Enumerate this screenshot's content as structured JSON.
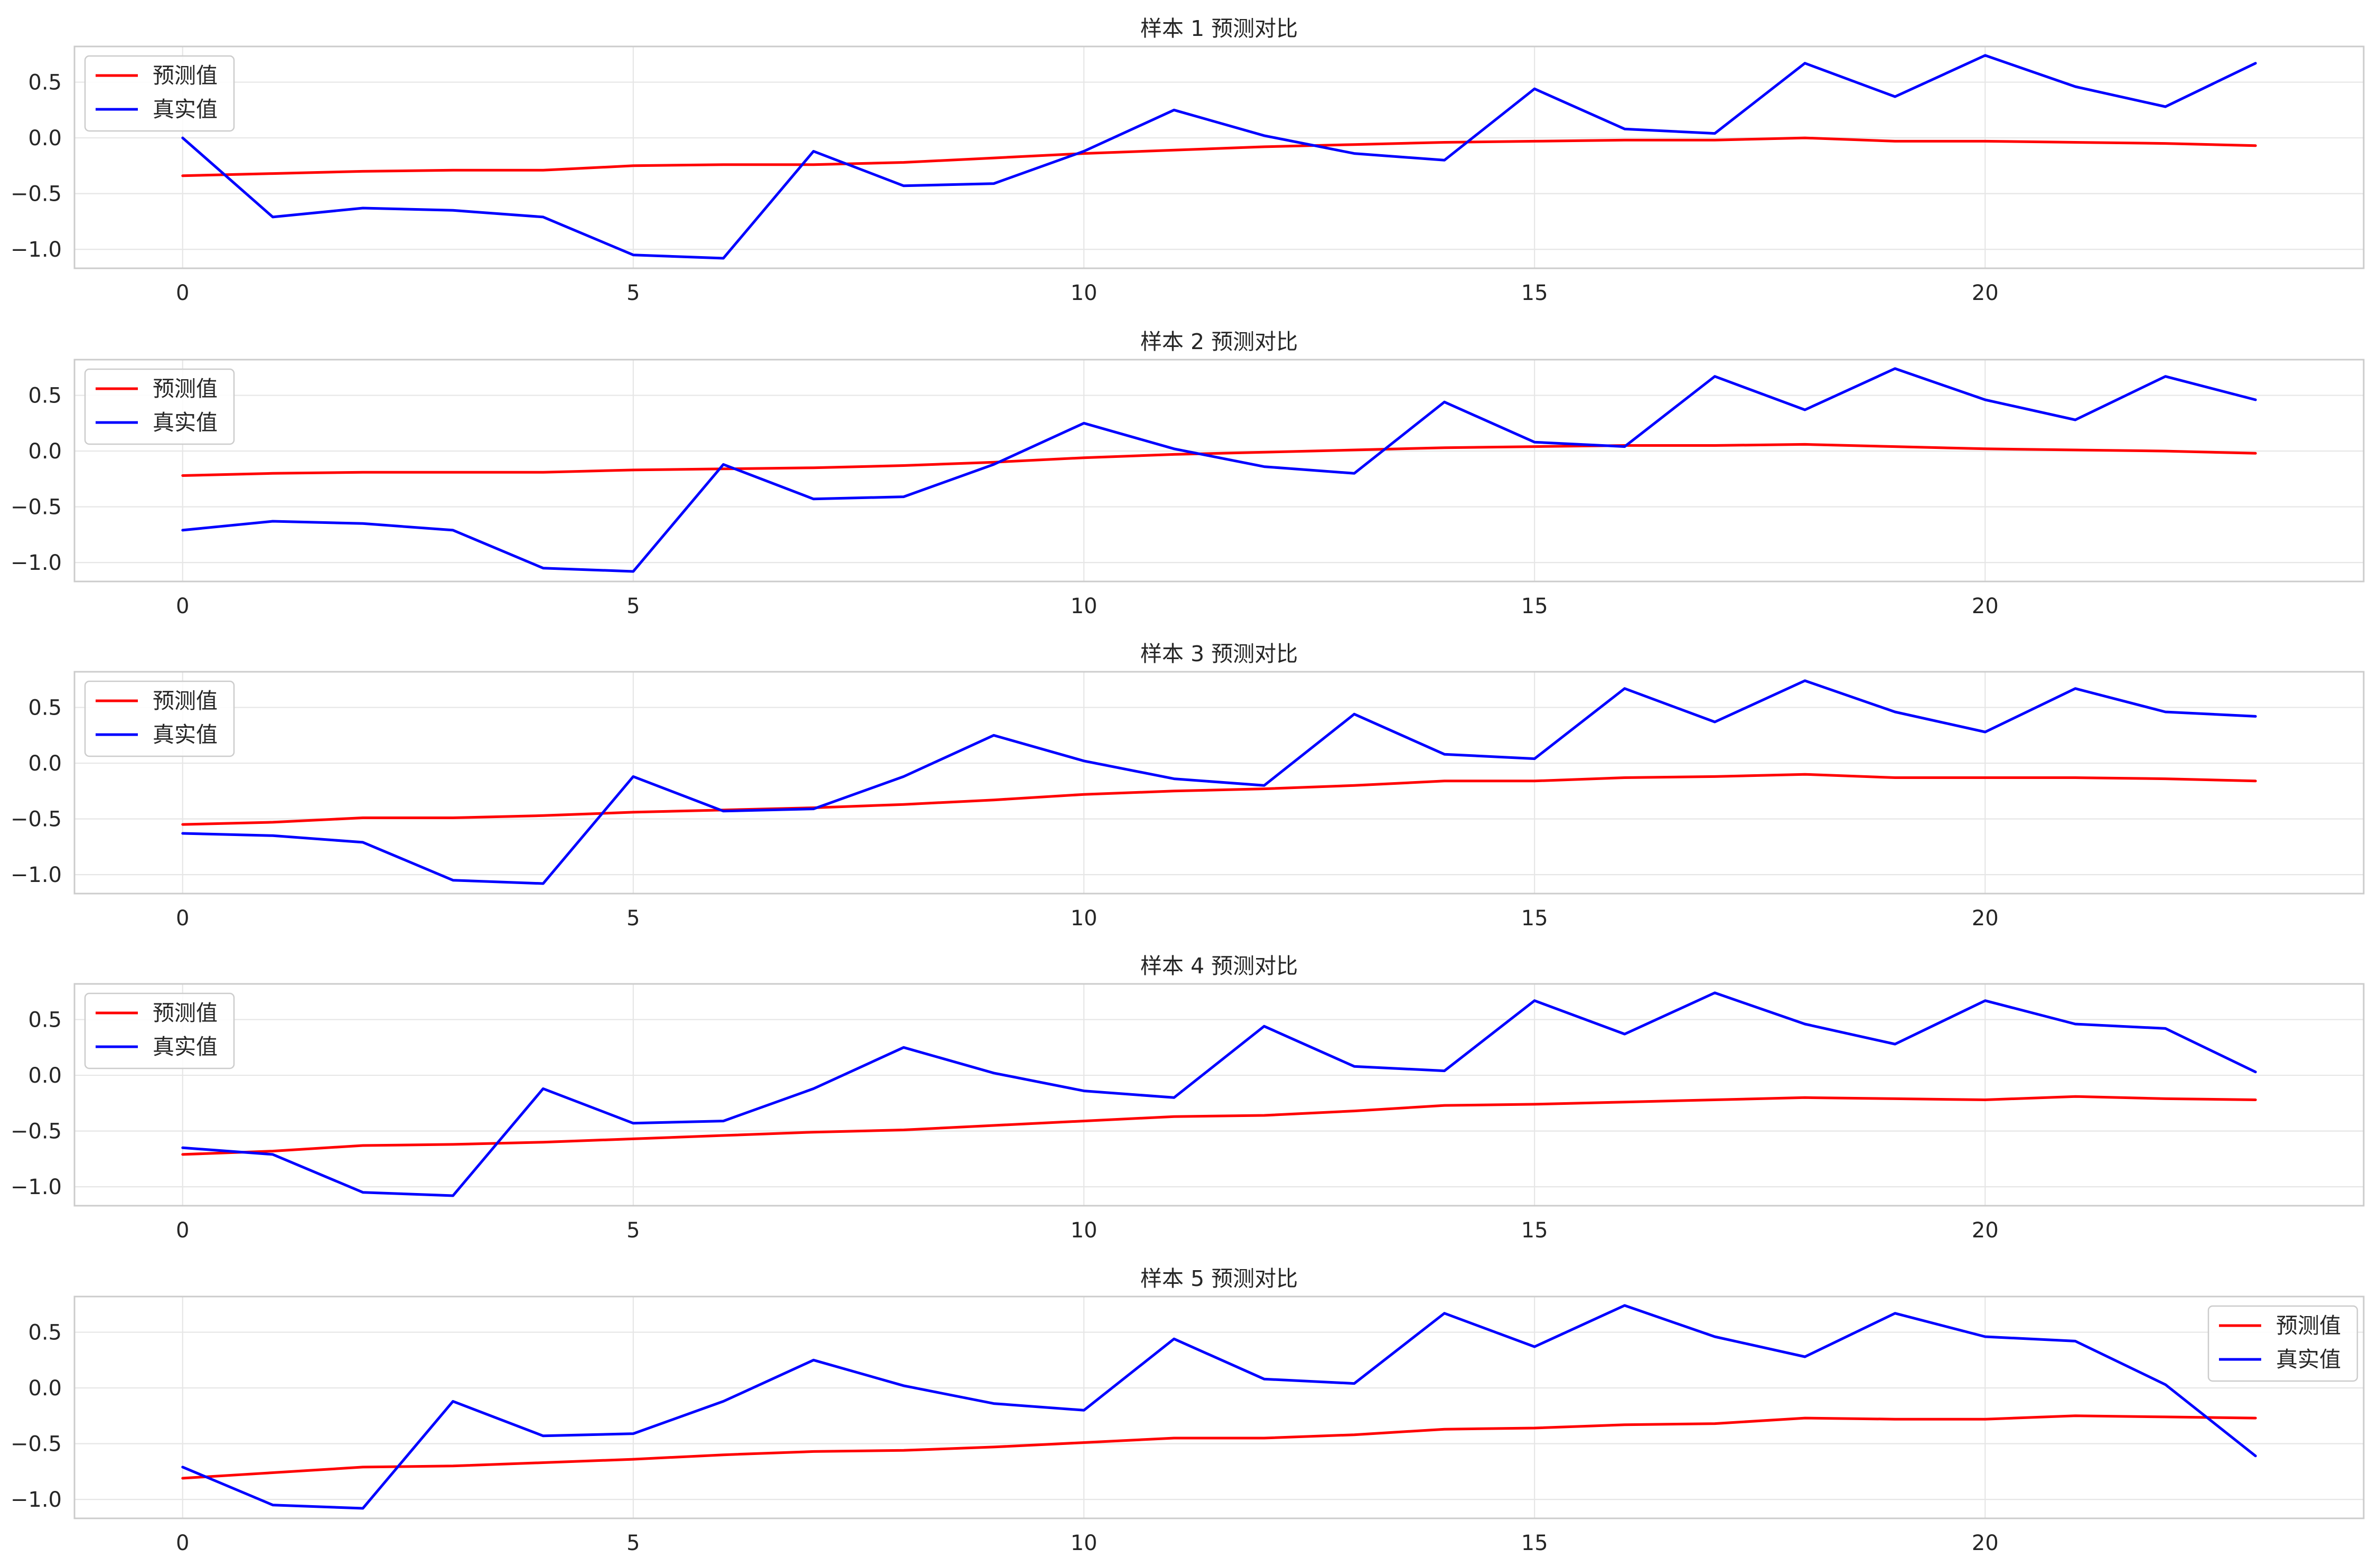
{
  "chart_data": [
    {
      "type": "line",
      "title": "样本 1 预测对比",
      "x": [
        0,
        1,
        2,
        3,
        4,
        5,
        6,
        7,
        8,
        9,
        10,
        11,
        12,
        13,
        14,
        15,
        16,
        17,
        18,
        19,
        20,
        21,
        22,
        23
      ],
      "xticks": [
        0,
        5,
        10,
        15,
        20
      ],
      "yticks": [
        0.5,
        0.0,
        -0.5,
        -1.0
      ],
      "ytick_labels": [
        "0.5",
        "0.0",
        "−0.5",
        "−1.0"
      ],
      "xlim": [
        -1.2,
        24.2
      ],
      "ylim": [
        -1.17,
        0.82
      ],
      "grid": true,
      "legend_placement": "upper-left",
      "series": [
        {
          "name": "预测值",
          "color": "#ff0000",
          "values": [
            -0.34,
            -0.32,
            -0.3,
            -0.29,
            -0.29,
            -0.25,
            -0.24,
            -0.24,
            -0.22,
            -0.18,
            -0.14,
            -0.11,
            -0.08,
            -0.06,
            -0.04,
            -0.03,
            -0.02,
            -0.02,
            0.0,
            -0.03,
            -0.03,
            -0.04,
            -0.05,
            -0.07
          ]
        },
        {
          "name": "真实值",
          "color": "#0000ff",
          "values": [
            0.0,
            -0.71,
            -0.63,
            -0.65,
            -0.71,
            -1.05,
            -1.08,
            -0.12,
            -0.43,
            -0.41,
            -0.12,
            0.25,
            0.02,
            -0.14,
            -0.2,
            0.44,
            0.08,
            0.04,
            0.67,
            0.37,
            0.74,
            0.46,
            0.28,
            0.67
          ]
        }
      ]
    },
    {
      "type": "line",
      "title": "样本 2 预测对比",
      "x": [
        0,
        1,
        2,
        3,
        4,
        5,
        6,
        7,
        8,
        9,
        10,
        11,
        12,
        13,
        14,
        15,
        16,
        17,
        18,
        19,
        20,
        21,
        22,
        23
      ],
      "xticks": [
        0,
        5,
        10,
        15,
        20
      ],
      "yticks": [
        0.5,
        0.0,
        -0.5,
        -1.0
      ],
      "ytick_labels": [
        "0.5",
        "0.0",
        "−0.5",
        "−1.0"
      ],
      "xlim": [
        -1.2,
        24.2
      ],
      "ylim": [
        -1.17,
        0.82
      ],
      "grid": true,
      "legend_placement": "upper-left",
      "series": [
        {
          "name": "预测值",
          "color": "#ff0000",
          "values": [
            -0.22,
            -0.2,
            -0.19,
            -0.19,
            -0.19,
            -0.17,
            -0.16,
            -0.15,
            -0.13,
            -0.1,
            -0.06,
            -0.03,
            -0.01,
            0.01,
            0.03,
            0.04,
            0.05,
            0.05,
            0.06,
            0.04,
            0.02,
            0.01,
            0.0,
            -0.02
          ]
        },
        {
          "name": "真实值",
          "color": "#0000ff",
          "values": [
            -0.71,
            -0.63,
            -0.65,
            -0.71,
            -1.05,
            -1.08,
            -0.12,
            -0.43,
            -0.41,
            -0.12,
            0.25,
            0.02,
            -0.14,
            -0.2,
            0.44,
            0.08,
            0.04,
            0.67,
            0.37,
            0.74,
            0.46,
            0.28,
            0.67,
            0.46
          ]
        }
      ]
    },
    {
      "type": "line",
      "title": "样本 3 预测对比",
      "x": [
        0,
        1,
        2,
        3,
        4,
        5,
        6,
        7,
        8,
        9,
        10,
        11,
        12,
        13,
        14,
        15,
        16,
        17,
        18,
        19,
        20,
        21,
        22,
        23
      ],
      "xticks": [
        0,
        5,
        10,
        15,
        20
      ],
      "yticks": [
        0.5,
        0.0,
        -0.5,
        -1.0
      ],
      "ytick_labels": [
        "0.5",
        "0.0",
        "−0.5",
        "−1.0"
      ],
      "xlim": [
        -1.2,
        24.2
      ],
      "ylim": [
        -1.17,
        0.82
      ],
      "grid": true,
      "legend_placement": "upper-left",
      "series": [
        {
          "name": "预测值",
          "color": "#ff0000",
          "values": [
            -0.55,
            -0.53,
            -0.49,
            -0.49,
            -0.47,
            -0.44,
            -0.42,
            -0.4,
            -0.37,
            -0.33,
            -0.28,
            -0.25,
            -0.23,
            -0.2,
            -0.16,
            -0.16,
            -0.13,
            -0.12,
            -0.1,
            -0.13,
            -0.13,
            -0.13,
            -0.14,
            -0.16
          ]
        },
        {
          "name": "真实值",
          "color": "#0000ff",
          "values": [
            -0.63,
            -0.65,
            -0.71,
            -1.05,
            -1.08,
            -0.12,
            -0.43,
            -0.41,
            -0.12,
            0.25,
            0.02,
            -0.14,
            -0.2,
            0.44,
            0.08,
            0.04,
            0.67,
            0.37,
            0.74,
            0.46,
            0.28,
            0.67,
            0.46,
            0.42
          ]
        }
      ]
    },
    {
      "type": "line",
      "title": "样本 4 预测对比",
      "x": [
        0,
        1,
        2,
        3,
        4,
        5,
        6,
        7,
        8,
        9,
        10,
        11,
        12,
        13,
        14,
        15,
        16,
        17,
        18,
        19,
        20,
        21,
        22,
        23
      ],
      "xticks": [
        0,
        5,
        10,
        15,
        20
      ],
      "yticks": [
        0.5,
        0.0,
        -0.5,
        -1.0
      ],
      "ytick_labels": [
        "0.5",
        "0.0",
        "−0.5",
        "−1.0"
      ],
      "xlim": [
        -1.2,
        24.2
      ],
      "ylim": [
        -1.17,
        0.82
      ],
      "grid": true,
      "legend_placement": "upper-left",
      "series": [
        {
          "name": "预测值",
          "color": "#ff0000",
          "values": [
            -0.71,
            -0.68,
            -0.63,
            -0.62,
            -0.6,
            -0.57,
            -0.54,
            -0.51,
            -0.49,
            -0.45,
            -0.41,
            -0.37,
            -0.36,
            -0.32,
            -0.27,
            -0.26,
            -0.24,
            -0.22,
            -0.2,
            -0.21,
            -0.22,
            -0.19,
            -0.21,
            -0.22
          ]
        },
        {
          "name": "真实值",
          "color": "#0000ff",
          "values": [
            -0.65,
            -0.71,
            -1.05,
            -1.08,
            -0.12,
            -0.43,
            -0.41,
            -0.12,
            0.25,
            0.02,
            -0.14,
            -0.2,
            0.44,
            0.08,
            0.04,
            0.67,
            0.37,
            0.74,
            0.46,
            0.28,
            0.67,
            0.46,
            0.42,
            0.03
          ]
        }
      ]
    },
    {
      "type": "line",
      "title": "样本 5 预测对比",
      "x": [
        0,
        1,
        2,
        3,
        4,
        5,
        6,
        7,
        8,
        9,
        10,
        11,
        12,
        13,
        14,
        15,
        16,
        17,
        18,
        19,
        20,
        21,
        22,
        23
      ],
      "xticks": [
        0,
        5,
        10,
        15,
        20
      ],
      "yticks": [
        0.5,
        0.0,
        -0.5,
        -1.0
      ],
      "ytick_labels": [
        "0.5",
        "0.0",
        "−0.5",
        "−1.0"
      ],
      "xlim": [
        -1.2,
        24.2
      ],
      "ylim": [
        -1.17,
        0.82
      ],
      "grid": true,
      "legend_placement": "upper-right",
      "series": [
        {
          "name": "预测值",
          "color": "#ff0000",
          "values": [
            -0.81,
            -0.76,
            -0.71,
            -0.7,
            -0.67,
            -0.64,
            -0.6,
            -0.57,
            -0.56,
            -0.53,
            -0.49,
            -0.45,
            -0.45,
            -0.42,
            -0.37,
            -0.36,
            -0.33,
            -0.32,
            -0.27,
            -0.28,
            -0.28,
            -0.25,
            -0.26,
            -0.27
          ]
        },
        {
          "name": "真实值",
          "color": "#0000ff",
          "values": [
            -0.71,
            -1.05,
            -1.08,
            -0.12,
            -0.43,
            -0.41,
            -0.12,
            0.25,
            0.02,
            -0.14,
            -0.2,
            0.44,
            0.08,
            0.04,
            0.67,
            0.37,
            0.74,
            0.46,
            0.28,
            0.67,
            0.46,
            0.42,
            0.03,
            -0.61
          ]
        }
      ]
    }
  ]
}
